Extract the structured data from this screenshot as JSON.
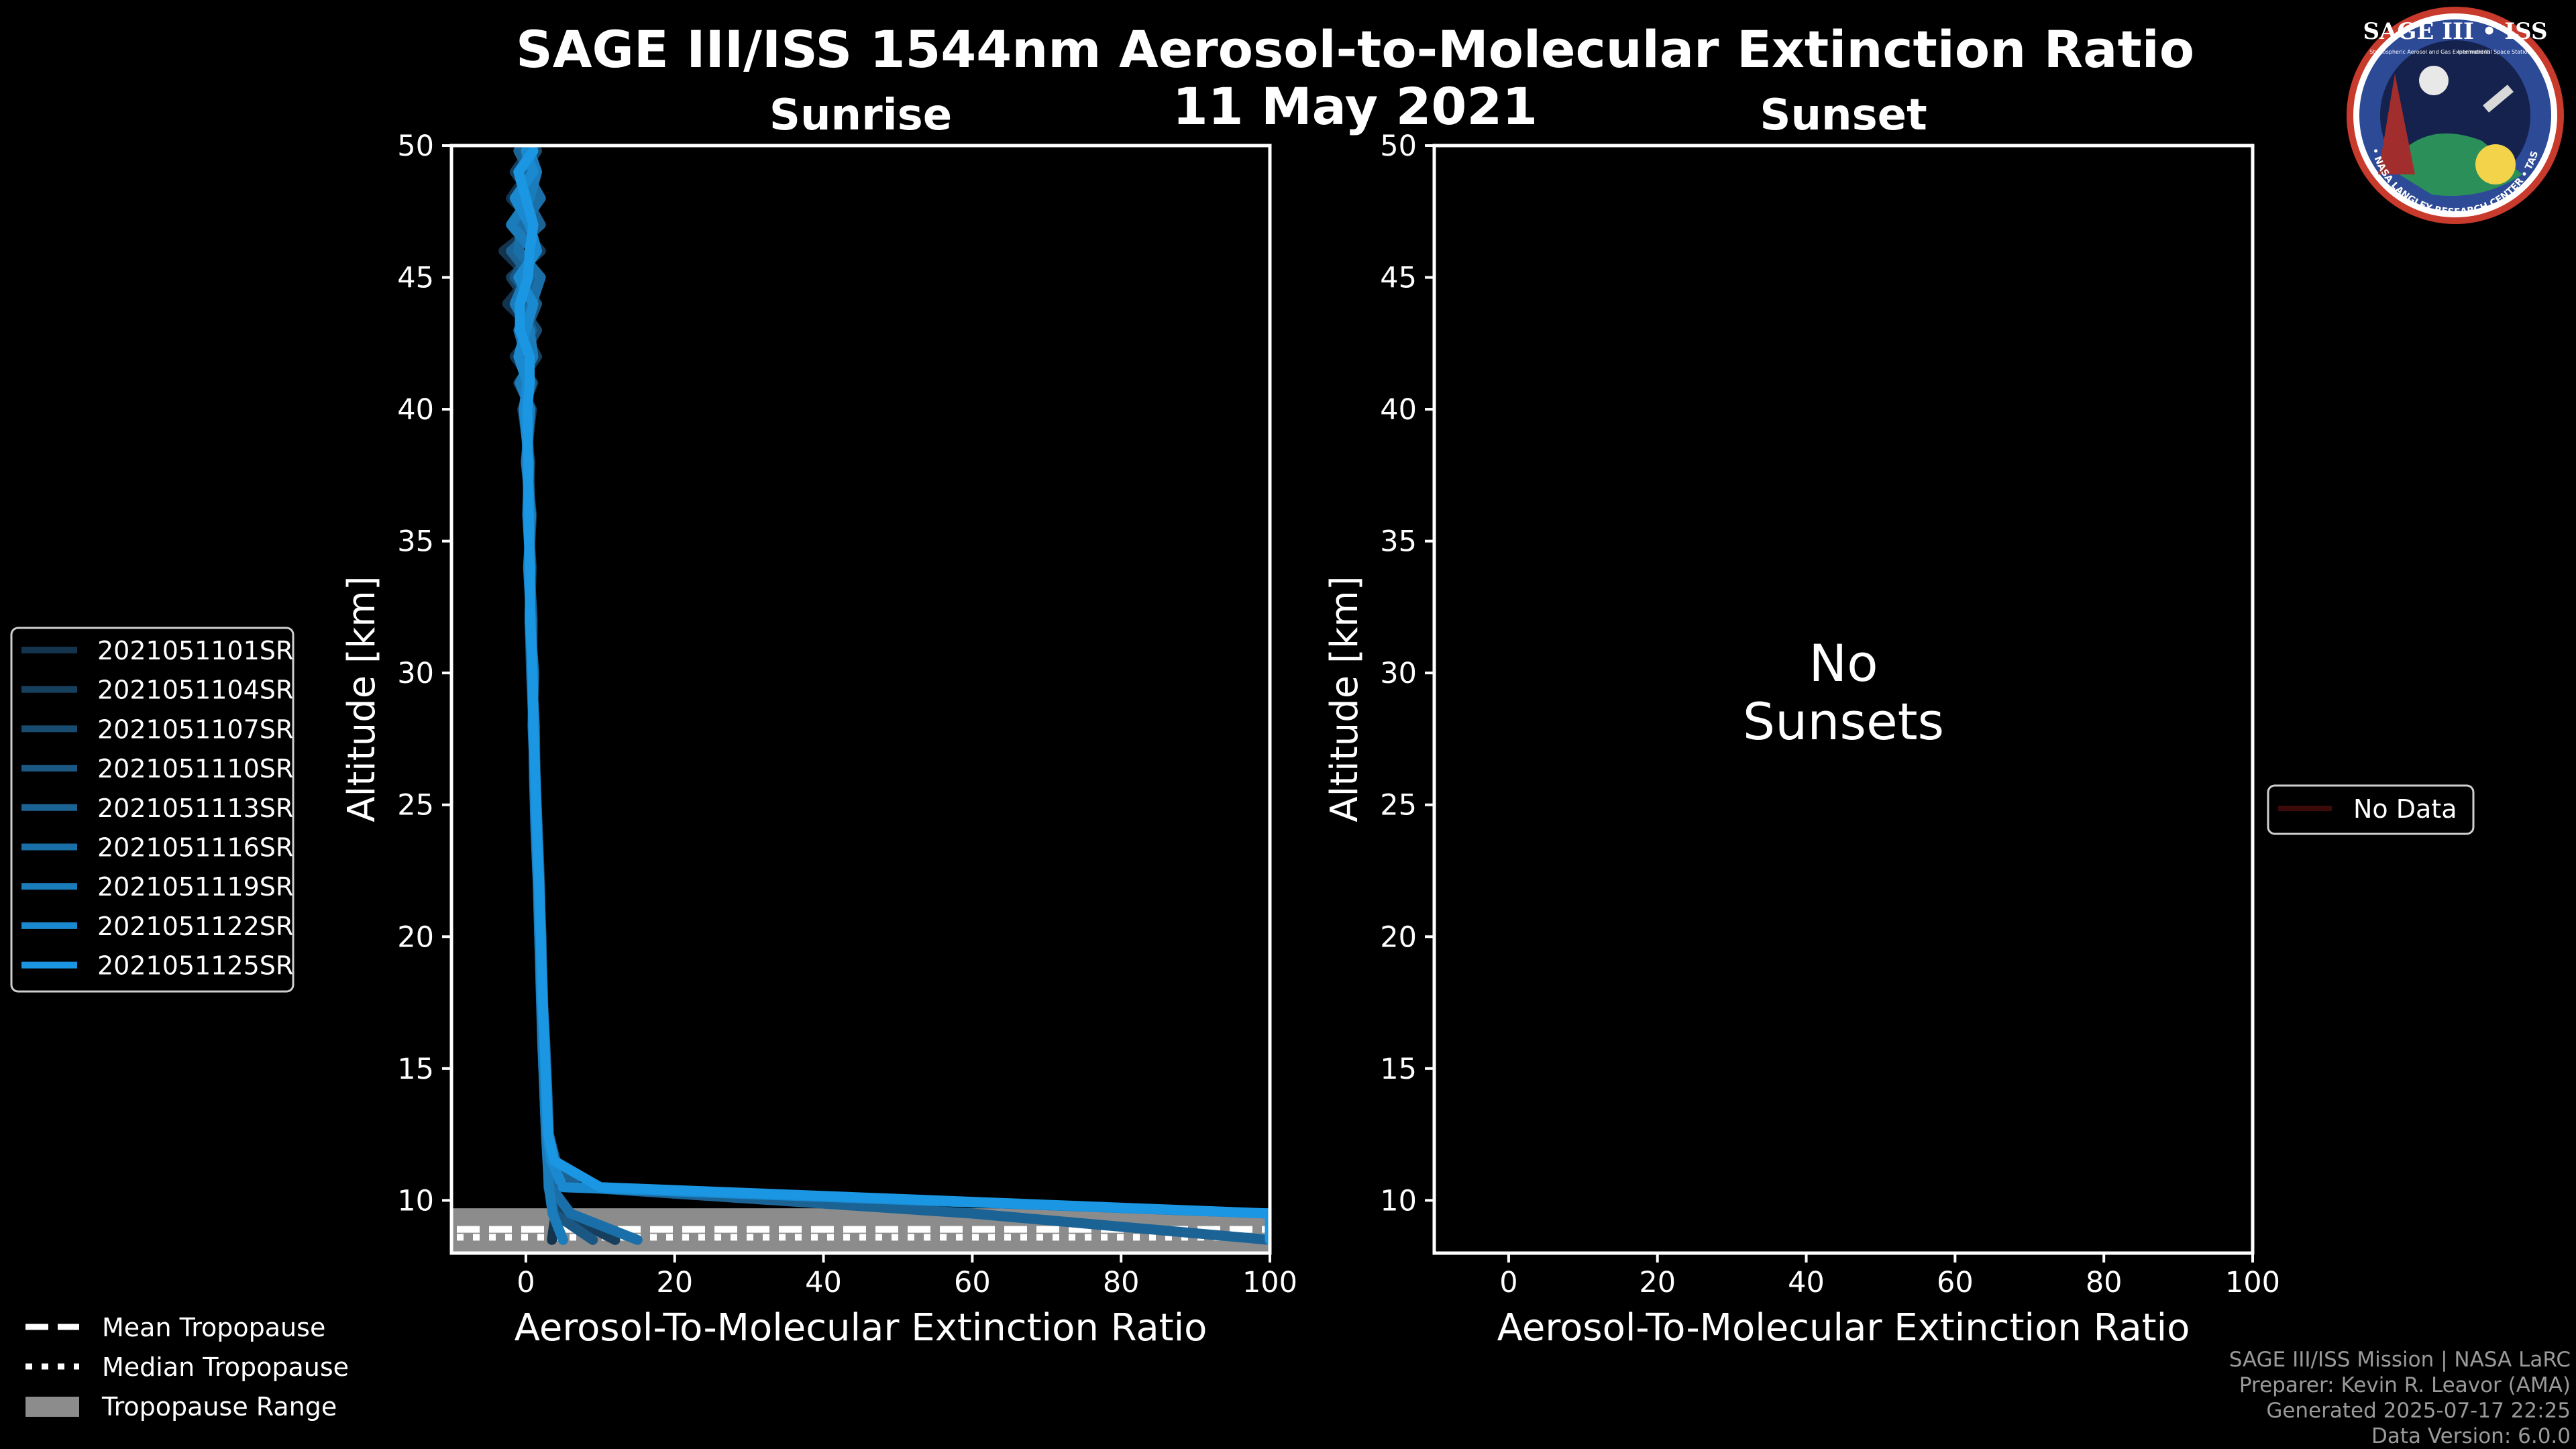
{
  "title": "SAGE III/ISS 1544nm Aerosol-to-Molecular Extinction Ratio",
  "date": "11 May 2021",
  "logo": {
    "text": "SAGE III • ISS",
    "subtext_left": "Stratospheric Aerosol and Gas Experiment III",
    "subtext_right": "International Space Station",
    "ring_text": "BALL • NASA LANGLEY RESEARCH CENTER • TAS • ESA"
  },
  "credits": [
    "SAGE III/ISS Mission | NASA LaRC",
    "Preparer: Kevin R. Leavor (AMA)",
    "Generated 2025-07-17 22:25",
    "Data Version: 6.0.0"
  ],
  "tropopause_legend": {
    "mean": "Mean Tropopause",
    "median": "Median Tropopause",
    "range": "Tropopause Range"
  },
  "chart_data": [
    {
      "type": "line",
      "panel": "Sunrise",
      "title": "Sunrise",
      "xlabel": "Aerosol-To-Molecular Extinction Ratio",
      "ylabel": "Altitude [km]",
      "xlim": [
        -10,
        100
      ],
      "ylim": [
        8,
        50
      ],
      "xticks": [
        0,
        20,
        40,
        60,
        80,
        100
      ],
      "yticks": [
        10,
        15,
        20,
        25,
        30,
        35,
        40,
        45,
        50
      ],
      "tropopause": {
        "mean": 8.9,
        "median": 8.6,
        "range": [
          8.0,
          9.7
        ]
      },
      "legend_position": "left",
      "series": [
        {
          "name": "2021051101SR",
          "color": "#14344d"
        },
        {
          "name": "2021051104SR",
          "color": "#163f5e"
        },
        {
          "name": "2021051107SR",
          "color": "#184b70"
        },
        {
          "name": "2021051110SR",
          "color": "#1a5783"
        },
        {
          "name": "2021051113SR",
          "color": "#1b6395"
        },
        {
          "name": "2021051116SR",
          "color": "#1b6fa8"
        },
        {
          "name": "2021051119SR",
          "color": "#1b7cbb"
        },
        {
          "name": "2021051122SR",
          "color": "#1b89cf"
        },
        {
          "name": "2021051125SR",
          "color": "#1a96e2"
        }
      ],
      "altitude": [
        8.5,
        9.5,
        10.5,
        11.5,
        12.5,
        14,
        16,
        18,
        20,
        22,
        24,
        26,
        28,
        30,
        32,
        34,
        36,
        38,
        40,
        41,
        42,
        43,
        44,
        45,
        46,
        47,
        48,
        49,
        49.8
      ],
      "ratio_profiles": [
        [
          3.5,
          4.0,
          3.0,
          3.0,
          2.8,
          2.6,
          2.4,
          2.1,
          2.0,
          1.8,
          1.5,
          1.2,
          0.9,
          1.0,
          0.5,
          0.8,
          0.2,
          0.6,
          -0.5,
          1.0,
          -1.5,
          1.2,
          -2.5,
          0.5,
          -3.0,
          1.5,
          -2.0,
          0.5,
          1.0
        ],
        [
          12.0,
          5.0,
          3.5,
          3.2,
          2.9,
          2.7,
          2.5,
          2.2,
          1.9,
          1.7,
          1.4,
          1.3,
          1.0,
          0.8,
          0.7,
          0.4,
          0.8,
          0.0,
          0.8,
          -1.0,
          1.5,
          -0.5,
          0.5,
          -2.0,
          2.0,
          -1.0,
          1.0,
          -1.5,
          0.5
        ],
        [
          100.0,
          100.0,
          6.0,
          3.5,
          3.0,
          2.8,
          2.4,
          2.3,
          2.0,
          1.9,
          1.6,
          1.2,
          1.1,
          0.9,
          0.6,
          0.6,
          0.3,
          0.5,
          0.0,
          0.5,
          -0.5,
          1.5,
          -1.0,
          1.0,
          -1.5,
          0.0,
          1.5,
          -0.5,
          1.5
        ],
        [
          9.0,
          3.8,
          3.2,
          3.0,
          2.7,
          2.5,
          2.3,
          2.0,
          1.8,
          1.6,
          1.5,
          1.1,
          1.0,
          0.7,
          0.5,
          0.7,
          0.4,
          0.2,
          0.5,
          -0.5,
          0.5,
          0.0,
          1.5,
          -1.5,
          0.5,
          1.0,
          -1.0,
          1.0,
          -0.5
        ],
        [
          100.0,
          60.0,
          7.0,
          4.0,
          3.1,
          2.9,
          2.6,
          2.2,
          2.1,
          1.8,
          1.6,
          1.3,
          1.2,
          0.8,
          0.9,
          0.5,
          0.6,
          0.4,
          -0.2,
          0.8,
          -0.8,
          0.8,
          -0.5,
          0.8,
          -2.0,
          2.0,
          0.0,
          0.5,
          -1.0
        ],
        [
          15.0,
          6.0,
          3.4,
          3.1,
          2.8,
          2.6,
          2.4,
          2.1,
          1.9,
          1.7,
          1.4,
          1.2,
          0.9,
          1.1,
          0.6,
          0.5,
          0.5,
          0.1,
          0.3,
          0.0,
          0.0,
          -1.0,
          0.8,
          2.0,
          -1.0,
          -0.5,
          2.0,
          0.0,
          0.0
        ],
        [
          5.0,
          3.6,
          3.1,
          2.9,
          2.7,
          2.5,
          2.2,
          2.0,
          1.8,
          1.6,
          1.3,
          1.1,
          1.0,
          0.8,
          0.7,
          0.3,
          0.7,
          0.0,
          0.6,
          -0.8,
          1.0,
          0.5,
          -1.5,
          0.0,
          1.0,
          -2.0,
          0.5,
          1.5,
          0.5
        ],
        [
          100.0,
          100.0,
          5.0,
          3.4,
          2.9,
          2.7,
          2.5,
          2.1,
          2.0,
          1.7,
          1.5,
          1.2,
          1.1,
          0.9,
          0.5,
          0.6,
          0.2,
          0.4,
          -0.3,
          0.2,
          -1.0,
          0.0,
          1.0,
          -1.0,
          1.5,
          0.5,
          -1.5,
          1.0,
          0.0
        ],
        [
          100.0,
          100.0,
          10.0,
          3.8,
          3.0,
          2.8,
          2.5,
          2.2,
          2.0,
          1.8,
          1.5,
          1.3,
          1.0,
          0.9,
          0.6,
          0.5,
          0.4,
          0.3,
          0.2,
          0.5,
          0.5,
          -0.8,
          -0.8,
          0.3,
          0.5,
          1.0,
          0.0,
          -1.0,
          1.0
        ]
      ]
    },
    {
      "type": "line",
      "panel": "Sunset",
      "title": "Sunset",
      "xlabel": "Aerosol-To-Molecular Extinction Ratio",
      "ylabel": "Altitude [km]",
      "xlim": [
        -10,
        100
      ],
      "ylim": [
        8,
        50
      ],
      "xticks": [
        0,
        20,
        40,
        60,
        80,
        100
      ],
      "yticks": [
        10,
        15,
        20,
        25,
        30,
        35,
        40,
        45,
        50
      ],
      "message": [
        "No",
        "Sunsets"
      ],
      "legend_position": "right",
      "series": [
        {
          "name": "No Data",
          "color": "#3d0a0a"
        }
      ]
    }
  ]
}
